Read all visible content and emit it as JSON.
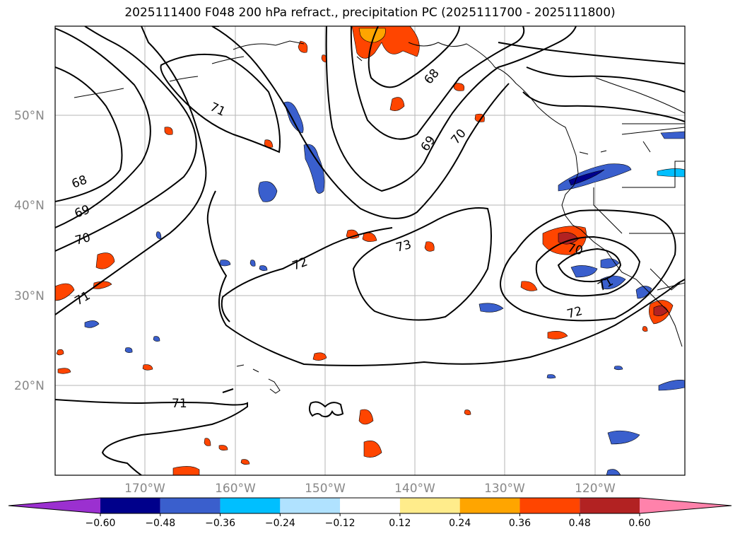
{
  "title": "2025111400 F048 200 hPa refract., precipitation PC (2025111700 - 2025111800)",
  "lat_labels": [
    "50°N",
    "40°N",
    "30°N",
    "20°N"
  ],
  "lon_labels": [
    "170°W",
    "160°W",
    "150°W",
    "140°W",
    "130°W",
    "120°W"
  ],
  "contour_labels": {
    "c68a": "68",
    "c69a": "69",
    "c70a": "70",
    "c71a": "71",
    "c71b": "71",
    "c72a": "72",
    "c73a": "73",
    "c68b": "68",
    "c69b": "69",
    "c70b": "70",
    "c70c": "70",
    "c71c": "71",
    "c72b": "72",
    "c71d": "71"
  },
  "colorbar": {
    "colors": [
      "#9b30d0",
      "#00008b",
      "#3a5fcd",
      "#00bfff",
      "#b0e2ff",
      "#ffffff",
      "#ffec8b",
      "#ffa500",
      "#ff4500",
      "#b22222",
      "#ff82ab"
    ],
    "ticks": [
      "−0.60",
      "−0.48",
      "−0.36",
      "−0.24",
      "−0.12",
      "0.12",
      "0.24",
      "0.36",
      "0.48",
      "0.60"
    ]
  }
}
